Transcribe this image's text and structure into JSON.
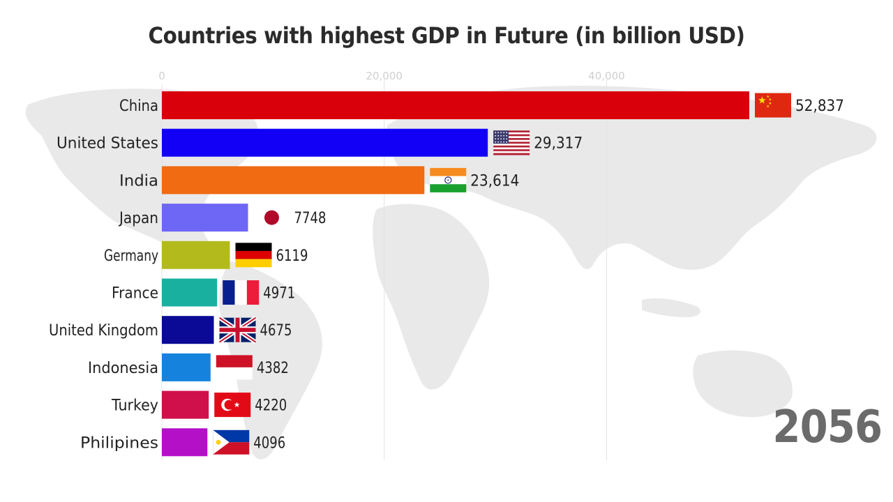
{
  "chart_data": {
    "type": "bar",
    "orientation": "horizontal",
    "title": "Countries with highest GDP in Future (in billion USD)",
    "year": "2056",
    "xlim": [
      0,
      53000
    ],
    "ticks": [
      {
        "value": 0,
        "label": "0"
      },
      {
        "value": 20000,
        "label": "20,000"
      },
      {
        "value": 40000,
        "label": "40,000"
      }
    ],
    "grid": true,
    "categories": [
      "China",
      "United States",
      "India",
      "Japan",
      "Germany",
      "France",
      "United Kingdom",
      "Indonesia",
      "Turkey",
      "Philipines"
    ],
    "values": [
      52837,
      29317,
      23614,
      7748,
      6119,
      4971,
      4675,
      4382,
      4220,
      4096
    ],
    "value_labels": [
      "52,837",
      "29,317",
      "23,614",
      "7748",
      "6119",
      "4971",
      "4675",
      "4382",
      "4220",
      "4096"
    ],
    "colors": [
      "#d9000b",
      "#1100f5",
      "#f06b12",
      "#6e66f5",
      "#b3bb1c",
      "#1ab0a0",
      "#0a0a96",
      "#1582de",
      "#d0104a",
      "#b410c8"
    ],
    "flags": [
      "china-flag",
      "usa-flag",
      "india-flag",
      "japan-flag",
      "germany-flag",
      "france-flag",
      "uk-flag",
      "indonesia-flag",
      "turkey-flag",
      "philippines-flag"
    ]
  }
}
